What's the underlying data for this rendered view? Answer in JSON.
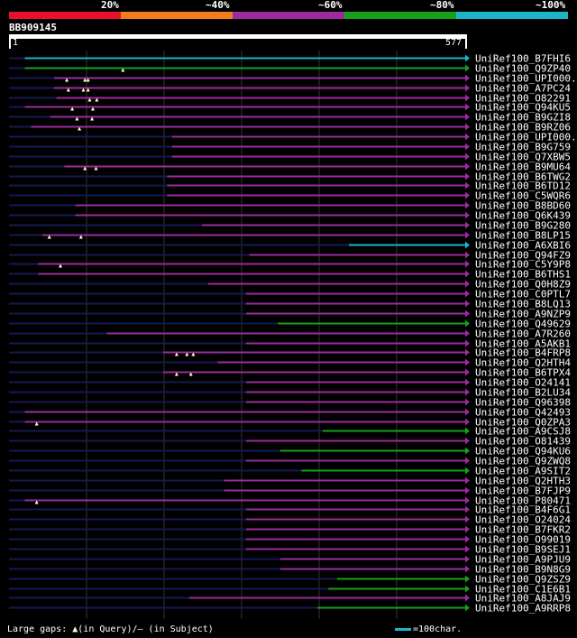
{
  "colors": {
    "seg1": "#e8112d",
    "seg2": "#ee7d1a",
    "seg3": "#9c2b9e",
    "seg4": "#16a11b",
    "seg5": "#1fb5c8",
    "track": "#141a52",
    "grid": "#333333",
    "gap": "#ffffcc",
    "text": "#ffffff"
  },
  "scale": {
    "labels": [
      "20%",
      "~40%",
      "~60%",
      "~80%",
      "~100%"
    ]
  },
  "query": {
    "name": "BB909145",
    "start": "1",
    "end": "577",
    "length": 577
  },
  "legend": {
    "gaps_prefix": "Large gaps: ",
    "gaps_triangle": "▲",
    "gaps_text": "(in Query)/– (in Subject)",
    "bar_text": "=100char."
  },
  "chart_data": {
    "type": "alignment",
    "x_unit": "query position",
    "hits": [
      {
        "name": "UniRef100_B7FHI6",
        "identity": 5,
        "segments": [
          [
            20,
            577
          ]
        ],
        "gaps": []
      },
      {
        "name": "UniRef100_Q9ZP40",
        "identity": 4,
        "segments": [
          [
            20,
            577
          ]
        ],
        "gaps": [
          144
        ]
      },
      {
        "name": "UniRef100_UPI000...",
        "identity": 3,
        "segments": [
          [
            57,
            577
          ]
        ],
        "gaps": [
          73,
          96,
          100
        ]
      },
      {
        "name": "UniRef100_A7PC24",
        "identity": 3,
        "segments": [
          [
            57,
            577
          ]
        ],
        "gaps": [
          75,
          94,
          100
        ]
      },
      {
        "name": "UniRef100_O82291",
        "identity": 3,
        "segments": [
          [
            60,
            577
          ]
        ],
        "gaps": [
          102,
          111
        ]
      },
      {
        "name": "UniRef100_Q94KU5",
        "identity": 3,
        "segments": [
          [
            20,
            577
          ]
        ],
        "gaps": [
          80,
          106
        ]
      },
      {
        "name": "UniRef100_B9GZI8",
        "identity": 3,
        "segments": [
          [
            52,
            577
          ]
        ],
        "gaps": [
          86,
          105
        ]
      },
      {
        "name": "UniRef100_B9RZ06",
        "identity": 3,
        "segments": [
          [
            28,
            577
          ]
        ],
        "gaps": [
          89
        ]
      },
      {
        "name": "UniRef100_UPI000...",
        "identity": 3,
        "segments": [
          [
            206,
            577
          ]
        ],
        "gaps": []
      },
      {
        "name": "UniRef100_B9G759",
        "identity": 3,
        "segments": [
          [
            206,
            577
          ]
        ],
        "gaps": []
      },
      {
        "name": "UniRef100_Q7XBW5",
        "identity": 3,
        "segments": [
          [
            206,
            577
          ]
        ],
        "gaps": []
      },
      {
        "name": "UniRef100_B9MU64",
        "identity": 3,
        "segments": [
          [
            70,
            577
          ]
        ],
        "gaps": [
          96,
          110
        ]
      },
      {
        "name": "UniRef100_B6TWG2",
        "identity": 3,
        "segments": [
          [
            200,
            577
          ]
        ],
        "gaps": []
      },
      {
        "name": "UniRef100_B6TD12",
        "identity": 3,
        "segments": [
          [
            200,
            577
          ]
        ],
        "gaps": []
      },
      {
        "name": "UniRef100_C5WQR6",
        "identity": 3,
        "segments": [
          [
            200,
            577
          ]
        ],
        "gaps": []
      },
      {
        "name": "UniRef100_B8BD60",
        "identity": 3,
        "segments": [
          [
            84,
            577
          ]
        ],
        "gaps": []
      },
      {
        "name": "UniRef100_Q6K439",
        "identity": 3,
        "segments": [
          [
            84,
            577
          ]
        ],
        "gaps": []
      },
      {
        "name": "UniRef100_B9G280",
        "identity": 3,
        "segments": [
          [
            244,
            577
          ]
        ],
        "gaps": []
      },
      {
        "name": "UniRef100_B8LP15",
        "identity": 3,
        "segments": [
          [
            42,
            577
          ]
        ],
        "gaps": [
          51,
          91
        ]
      },
      {
        "name": "UniRef100_A6XBI6",
        "identity": 5,
        "segments": [
          [
            430,
            577
          ]
        ],
        "gaps": []
      },
      {
        "name": "UniRef100_Q94FZ9",
        "identity": 3,
        "segments": [
          [
            304,
            577
          ]
        ],
        "gaps": []
      },
      {
        "name": "UniRef100_C5Y9P8",
        "identity": 3,
        "segments": [
          [
            37,
            577
          ]
        ],
        "gaps": [
          65
        ]
      },
      {
        "name": "UniRef100_B6THS1",
        "identity": 3,
        "segments": [
          [
            37,
            577
          ]
        ],
        "gaps": []
      },
      {
        "name": "UniRef100_Q0H8Z9",
        "identity": 3,
        "segments": [
          [
            252,
            577
          ]
        ],
        "gaps": []
      },
      {
        "name": "UniRef100_C0PTL7",
        "identity": 3,
        "segments": [
          [
            300,
            577
          ]
        ],
        "gaps": []
      },
      {
        "name": "UniRef100_B8LQ13",
        "identity": 3,
        "segments": [
          [
            300,
            577
          ]
        ],
        "gaps": []
      },
      {
        "name": "UniRef100_A9NZP9",
        "identity": 3,
        "segments": [
          [
            300,
            577
          ]
        ],
        "gaps": []
      },
      {
        "name": "UniRef100_Q49629",
        "identity": 4,
        "segments": [
          [
            340,
            577
          ]
        ],
        "gaps": []
      },
      {
        "name": "UniRef100_A7R260",
        "identity": 3,
        "segments": [
          [
            124,
            577
          ]
        ],
        "gaps": []
      },
      {
        "name": "UniRef100_A5AKB1",
        "identity": 3,
        "segments": [
          [
            300,
            577
          ]
        ],
        "gaps": []
      },
      {
        "name": "UniRef100_B4FRP8",
        "identity": 3,
        "segments": [
          [
            195,
            577
          ]
        ],
        "gaps": [
          212,
          225,
          233
        ]
      },
      {
        "name": "UniRef100_Q2HTH4",
        "identity": 3,
        "segments": [
          [
            264,
            577
          ]
        ],
        "gaps": []
      },
      {
        "name": "UniRef100_B6TPX4",
        "identity": 3,
        "segments": [
          [
            195,
            577
          ]
        ],
        "gaps": [
          212,
          230
        ]
      },
      {
        "name": "UniRef100_O24141",
        "identity": 3,
        "segments": [
          [
            300,
            577
          ]
        ],
        "gaps": []
      },
      {
        "name": "UniRef100_B2LU34",
        "identity": 3,
        "segments": [
          [
            300,
            577
          ]
        ],
        "gaps": []
      },
      {
        "name": "UniRef100_Q96398",
        "identity": 3,
        "segments": [
          [
            300,
            577
          ]
        ],
        "gaps": []
      },
      {
        "name": "UniRef100_Q42493",
        "identity": 3,
        "segments": [
          [
            20,
            577
          ]
        ],
        "gaps": []
      },
      {
        "name": "UniRef100_Q0ZPA3",
        "identity": 3,
        "segments": [
          [
            20,
            577
          ]
        ],
        "gaps": [
          35
        ]
      },
      {
        "name": "UniRef100_A9CSJ8",
        "identity": 4,
        "segments": [
          [
            397,
            577
          ]
        ],
        "gaps": []
      },
      {
        "name": "UniRef100_O81439",
        "identity": 3,
        "segments": [
          [
            300,
            577
          ]
        ],
        "gaps": []
      },
      {
        "name": "UniRef100_Q94KU6",
        "identity": 4,
        "segments": [
          [
            343,
            577
          ]
        ],
        "gaps": []
      },
      {
        "name": "UniRef100_Q9ZWQ8",
        "identity": 3,
        "segments": [
          [
            300,
            577
          ]
        ],
        "gaps": []
      },
      {
        "name": "UniRef100_A9SIT2",
        "identity": 4,
        "segments": [
          [
            370,
            577
          ]
        ],
        "gaps": []
      },
      {
        "name": "UniRef100_Q2HTH3",
        "identity": 3,
        "segments": [
          [
            272,
            577
          ]
        ],
        "gaps": []
      },
      {
        "name": "UniRef100_B7FJP9",
        "identity": 3,
        "segments": [
          [
            272,
            577
          ]
        ],
        "gaps": []
      },
      {
        "name": "UniRef100_P80471",
        "identity": 3,
        "segments": [
          [
            20,
            577
          ]
        ],
        "gaps": [
          35
        ]
      },
      {
        "name": "UniRef100_B4F6G1",
        "identity": 3,
        "segments": [
          [
            300,
            577
          ]
        ],
        "gaps": []
      },
      {
        "name": "UniRef100_O24024",
        "identity": 3,
        "segments": [
          [
            300,
            577
          ]
        ],
        "gaps": []
      },
      {
        "name": "UniRef100_B7FKR2",
        "identity": 3,
        "segments": [
          [
            300,
            577
          ]
        ],
        "gaps": []
      },
      {
        "name": "UniRef100_O99019",
        "identity": 3,
        "segments": [
          [
            300,
            577
          ]
        ],
        "gaps": []
      },
      {
        "name": "UniRef100_B9SEJ1",
        "identity": 3,
        "segments": [
          [
            300,
            577
          ]
        ],
        "gaps": []
      },
      {
        "name": "UniRef100_A9PJU9",
        "identity": 3,
        "segments": [
          [
            343,
            577
          ]
        ],
        "gaps": []
      },
      {
        "name": "UniRef100_B9N8G9",
        "identity": 3,
        "segments": [
          [
            343,
            577
          ]
        ],
        "gaps": []
      },
      {
        "name": "UniRef100_Q9ZSZ9",
        "identity": 4,
        "segments": [
          [
            415,
            577
          ]
        ],
        "gaps": []
      },
      {
        "name": "UniRef100_C1E6B1",
        "identity": 4,
        "segments": [
          [
            404,
            577
          ]
        ],
        "gaps": []
      },
      {
        "name": "UniRef100_A8JAJ9",
        "identity": 3,
        "segments": [
          [
            228,
            577
          ]
        ],
        "gaps": []
      },
      {
        "name": "UniRef100_A9RRP8",
        "identity": 4,
        "segments": [
          [
            390,
            577
          ]
        ],
        "gaps": []
      }
    ]
  }
}
